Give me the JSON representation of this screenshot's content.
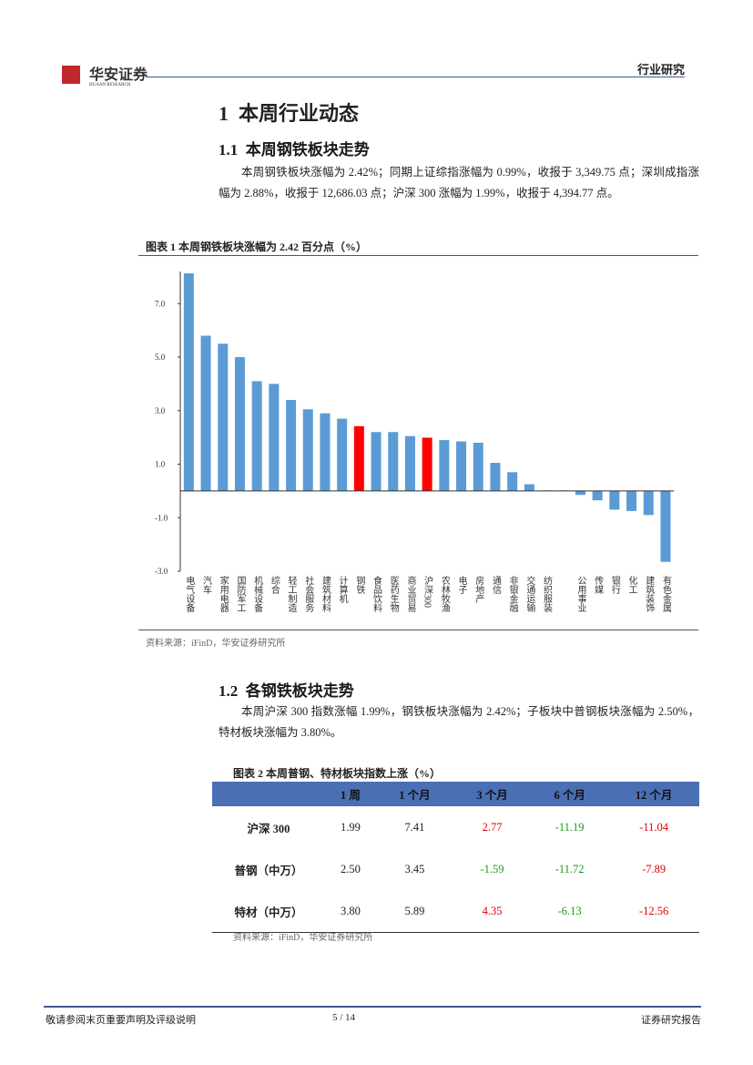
{
  "header": {
    "logo_cn": "华安证券",
    "logo_en": "HUAAN RESEARCH",
    "category": "行业研究"
  },
  "section1": {
    "number": "1",
    "title": "本周行业动态"
  },
  "section1_1": {
    "number": "1.1",
    "title": "本周钢铁板块走势",
    "paragraph": "本周钢铁板块涨幅为 2.42%；同期上证综指涨幅为 0.99%，收报于 3,349.75 点；深圳成指涨幅为 2.88%，收报于 12,686.03 点；沪深 300 涨幅为 1.99%，收报于 4,394.77 点。"
  },
  "figure1": {
    "title": "图表 1  本周钢铁板块涨幅为 2.42 百分点（%）",
    "source": "资料来源：iFinD，华安证券研究所"
  },
  "chart_data": {
    "type": "bar",
    "categories": [
      "电气设备",
      "汽车",
      "家用电器",
      "国防军工",
      "机械设备",
      "综合",
      "轻工制造",
      "社会服务",
      "建筑材料",
      "计算机",
      "钢铁",
      "食品饮料",
      "医药生物",
      "商业贸易",
      "沪深300",
      "农林牧渔",
      "电子",
      "房地产",
      "通信",
      "非银金融",
      "交通运输",
      "纺织服装",
      null,
      "公用事业",
      "传媒",
      "银行",
      "化工",
      "建筑装饰",
      "有色金属"
    ],
    "values": [
      8.13,
      5.8,
      5.5,
      5.0,
      4.1,
      4.0,
      3.4,
      3.05,
      2.9,
      2.7,
      2.42,
      2.2,
      2.2,
      2.05,
      1.99,
      1.9,
      1.85,
      1.8,
      1.05,
      0.7,
      0.25,
      0.02,
      0.02,
      -0.15,
      -0.35,
      -0.7,
      -0.75,
      -0.9,
      -2.65
    ],
    "colors": [
      "#5b9bd5",
      "#5b9bd5",
      "#5b9bd5",
      "#5b9bd5",
      "#5b9bd5",
      "#5b9bd5",
      "#5b9bd5",
      "#5b9bd5",
      "#5b9bd5",
      "#5b9bd5",
      "#ff0000",
      "#5b9bd5",
      "#5b9bd5",
      "#5b9bd5",
      "#ff0000",
      "#5b9bd5",
      "#5b9bd5",
      "#5b9bd5",
      "#5b9bd5",
      "#5b9bd5",
      "#5b9bd5",
      "#5b9bd5",
      "#5b9bd5",
      "#5b9bd5",
      "#5b9bd5",
      "#5b9bd5",
      "#5b9bd5",
      "#5b9bd5",
      "#5b9bd5"
    ],
    "ylim": [
      -3,
      8.2
    ],
    "yticks": [
      {
        "value": -3,
        "label": "-3.0"
      },
      {
        "value": -1,
        "label": "-1.0"
      },
      {
        "value": 1,
        "label": "1.0"
      },
      {
        "value": 3,
        "label": "3.0"
      },
      {
        "value": 5,
        "label": "5.0"
      },
      {
        "value": 7,
        "label": "7.0"
      }
    ]
  },
  "section1_2": {
    "number": "1.2",
    "title": "各钢铁板块走势",
    "paragraph": "本周沪深 300 指数涨幅 1.99%，钢铁板块涨幅为 2.42%；子板块中普钢板块涨幅为 2.50%，特材板块涨幅为 3.80%。"
  },
  "figure2": {
    "title": "图表 2  本周普钢、特材板块指数上涨（%）",
    "source": "资料来源：iFinD，华安证券研究所"
  },
  "table": {
    "header": [
      "1 周",
      "1 个月",
      "3 个月",
      "6 个月",
      "12 个月"
    ],
    "rows": [
      [
        "沪深 300",
        "1.99",
        "7.41",
        "2.77",
        "-11.19",
        "-11.04"
      ],
      [
        "普钢（中万）",
        "2.50",
        "3.45",
        "-1.59",
        "-11.72",
        "-7.89"
      ],
      [
        "特材（中万）",
        "3.80",
        "5.89",
        "4.35",
        "-6.13",
        "-12.56"
      ]
    ]
  },
  "footer": {
    "left": "敬请参阅末页重要声明及评级说明",
    "page": "5 / 14",
    "right": "证券研究报告"
  }
}
